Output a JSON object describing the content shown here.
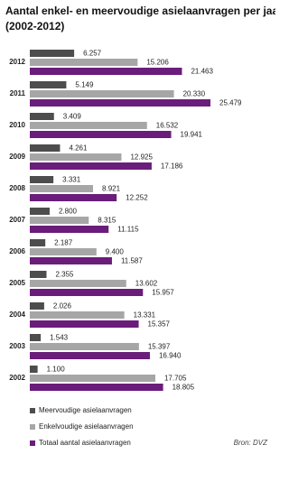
{
  "chart_data": {
    "type": "hbar",
    "title_lines": [
      "Aantal enkel- en meervoudige asielaanvragen per jaar",
      "(2002-2012)"
    ],
    "source": "Bron: DVZ",
    "categories": [
      "2012",
      "2011",
      "2010",
      "2009",
      "2008",
      "2007",
      "2006",
      "2005",
      "2004",
      "2003",
      "2002"
    ],
    "series": [
      {
        "name": "Meervoudige asielaanvragen",
        "color": "#4d4d4d",
        "values": [
          6257,
          5149,
          3409,
          4261,
          3331,
          2800,
          2187,
          2355,
          2026,
          1543,
          1100
        ],
        "value_labels": [
          "6.257",
          "5.149",
          "3.409",
          "4.261",
          "3.331",
          "2.800",
          "2.187",
          "2.355",
          "2.026",
          "1.543",
          "1.100"
        ]
      },
      {
        "name": "Enkelvoudige asielaanvragen",
        "color": "#a6a6a6",
        "values": [
          15206,
          20330,
          16532,
          12925,
          8921,
          8315,
          9400,
          13602,
          13331,
          15397,
          17705
        ],
        "value_labels": [
          "15.206",
          "20.330",
          "16.532",
          "12.925",
          "8.921",
          "8.315",
          "9.400",
          "13.602",
          "13.331",
          "15.397",
          "17.705"
        ]
      },
      {
        "name": "Totaal aantal asielaanvragen",
        "color": "#6a1d7a",
        "values": [
          21463,
          25479,
          19941,
          17186,
          12252,
          11115,
          11587,
          15957,
          15357,
          16940,
          18805
        ],
        "value_labels": [
          "21.463",
          "25.479",
          "19.941",
          "17.186",
          "12.252",
          "11.115",
          "11.587",
          "15.957",
          "15.357",
          "16.940",
          "18.805"
        ]
      }
    ]
  }
}
